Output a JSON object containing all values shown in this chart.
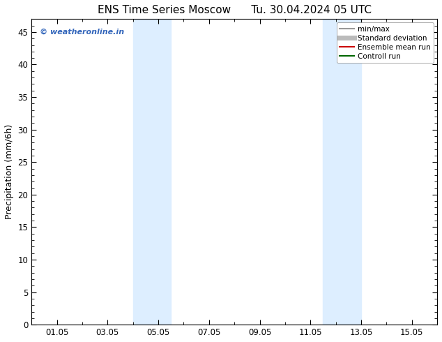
{
  "title": "ENS Time Series Moscow      Tu. 30.04.2024 05 UTC",
  "ylabel": "Precipitation (mm/6h)",
  "ylim": [
    0,
    47
  ],
  "yticks": [
    0,
    5,
    10,
    15,
    20,
    25,
    30,
    35,
    40,
    45
  ],
  "xtick_labels": [
    "01.05",
    "03.05",
    "05.05",
    "07.05",
    "09.05",
    "11.05",
    "13.05",
    "15.05"
  ],
  "xtick_positions": [
    1,
    3,
    5,
    7,
    9,
    11,
    13,
    15
  ],
  "xlim": [
    0,
    16
  ],
  "shaded_regions": [
    {
      "x_start": 4.0,
      "x_end": 5.5,
      "color": "#ddeeff"
    },
    {
      "x_start": 11.5,
      "x_end": 13.0,
      "color": "#ddeeff"
    }
  ],
  "watermark_text": "© weatheronline.in",
  "watermark_color": "#3366bb",
  "legend_items": [
    {
      "label": "min/max",
      "color": "#999999",
      "lw": 1.5
    },
    {
      "label": "Standard deviation",
      "color": "#bbbbbb",
      "lw": 5
    },
    {
      "label": "Ensemble mean run",
      "color": "#cc0000",
      "lw": 1.5
    },
    {
      "label": "Controll run",
      "color": "#006600",
      "lw": 1.5
    }
  ],
  "background_color": "#ffffff",
  "title_fontsize": 11,
  "tick_fontsize": 8.5,
  "ylabel_fontsize": 9
}
